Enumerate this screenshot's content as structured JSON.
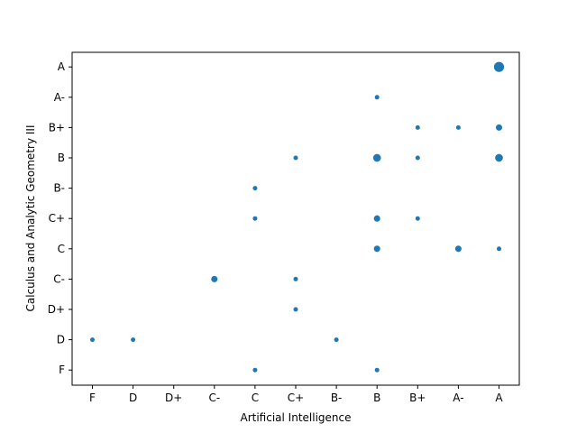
{
  "chart_data": {
    "type": "scatter",
    "title": "",
    "xlabel": "Artificial Intelligence",
    "ylabel": "Calculus and Analytic Geometry III",
    "x_categories": [
      "F",
      "D",
      "D+",
      "C-",
      "C",
      "C+",
      "B-",
      "B",
      "B+",
      "A-",
      "A"
    ],
    "y_categories": [
      "F",
      "D",
      "D+",
      "C-",
      "C",
      "C+",
      "B-",
      "B",
      "B+",
      "A-",
      "A"
    ],
    "grid": false,
    "marker_color": "#1f77b4",
    "points": [
      {
        "x": "F",
        "y": "D",
        "count": 1
      },
      {
        "x": "D",
        "y": "D",
        "count": 1
      },
      {
        "x": "C-",
        "y": "C-",
        "count": 2
      },
      {
        "x": "C",
        "y": "F",
        "count": 1
      },
      {
        "x": "C",
        "y": "C+",
        "count": 1
      },
      {
        "x": "C",
        "y": "B-",
        "count": 1
      },
      {
        "x": "C+",
        "y": "D+",
        "count": 1
      },
      {
        "x": "C+",
        "y": "C-",
        "count": 1
      },
      {
        "x": "C+",
        "y": "B",
        "count": 1
      },
      {
        "x": "B-",
        "y": "D",
        "count": 1
      },
      {
        "x": "B",
        "y": "F",
        "count": 1
      },
      {
        "x": "B",
        "y": "C",
        "count": 2
      },
      {
        "x": "B",
        "y": "C+",
        "count": 2
      },
      {
        "x": "B",
        "y": "B",
        "count": 3
      },
      {
        "x": "B",
        "y": "A-",
        "count": 1
      },
      {
        "x": "B+",
        "y": "C+",
        "count": 1
      },
      {
        "x": "B+",
        "y": "B",
        "count": 1
      },
      {
        "x": "B+",
        "y": "B+",
        "count": 1
      },
      {
        "x": "A-",
        "y": "C",
        "count": 2
      },
      {
        "x": "A-",
        "y": "B+",
        "count": 1
      },
      {
        "x": "A",
        "y": "C",
        "count": 1
      },
      {
        "x": "A",
        "y": "B",
        "count": 3
      },
      {
        "x": "A",
        "y": "B+",
        "count": 2
      },
      {
        "x": "A",
        "y": "A",
        "count": 5
      }
    ]
  }
}
